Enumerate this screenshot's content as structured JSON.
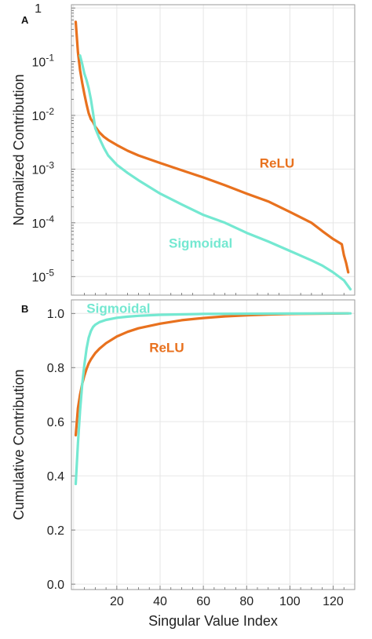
{
  "chart_data": [
    {
      "panel": "A",
      "type": "line",
      "ylabel": "Normalized Contribution",
      "xlabel": "",
      "yscale": "log",
      "ylim": [
        4.5e-06,
        1.15
      ],
      "xlim": [
        -1,
        130
      ],
      "yticks": [
        {
          "value": 1,
          "base": "1",
          "exp": ""
        },
        {
          "value": 0.1,
          "base": "10",
          "exp": "-1"
        },
        {
          "value": 0.01,
          "base": "10",
          "exp": "-2"
        },
        {
          "value": 0.001,
          "base": "10",
          "exp": "-3"
        },
        {
          "value": 0.0001,
          "base": "10",
          "exp": "-4"
        },
        {
          "value": 1e-05,
          "base": "10",
          "exp": "-5"
        }
      ],
      "xgrid": [
        0,
        20,
        40,
        60,
        80,
        100,
        120
      ],
      "grid": true,
      "series": [
        {
          "name": "ReLU",
          "color": "#e8711e",
          "label_at": [
            86,
            0.0013
          ],
          "x": [
            1,
            2,
            3,
            4,
            5,
            6,
            7,
            8,
            9,
            10,
            12,
            14,
            16,
            20,
            25,
            30,
            40,
            50,
            60,
            70,
            80,
            90,
            100,
            110,
            115,
            120,
            124,
            125,
            126,
            127
          ],
          "y": [
            0.55,
            0.15,
            0.07,
            0.04,
            0.025,
            0.016,
            0.011,
            0.0085,
            0.0075,
            0.0062,
            0.0048,
            0.004,
            0.0035,
            0.0028,
            0.0022,
            0.0018,
            0.0013,
            0.00095,
            0.0007,
            0.0005,
            0.00035,
            0.00025,
            0.00016,
            0.0001,
            7e-05,
            5e-05,
            4e-05,
            2.5e-05,
            1.8e-05,
            1.2e-05
          ]
        },
        {
          "name": "Sigmoidal",
          "color": "#74e8d1",
          "label_at": [
            44,
            4.2e-05
          ],
          "x": [
            3,
            4,
            5,
            6,
            7,
            8,
            9,
            10,
            12,
            14,
            16,
            20,
            25,
            30,
            40,
            50,
            60,
            70,
            80,
            90,
            100,
            110,
            115,
            120,
            125,
            128
          ],
          "y": [
            0.13,
            0.09,
            0.06,
            0.045,
            0.032,
            0.02,
            0.011,
            0.0058,
            0.0037,
            0.0025,
            0.0018,
            0.0012,
            0.00085,
            0.00062,
            0.00035,
            0.00022,
            0.00014,
            0.0001,
            6.5e-05,
            4.5e-05,
            3e-05,
            2e-05,
            1.6e-05,
            1.2e-05,
            8.5e-06,
            5.8e-06
          ]
        }
      ]
    },
    {
      "panel": "B",
      "type": "line",
      "ylabel": "Cumulative Contribution",
      "xlabel": "Singular Value Index",
      "yscale": "linear",
      "ylim": [
        -0.02,
        1.05
      ],
      "xlim": [
        -1,
        130
      ],
      "yticks": [
        0.0,
        0.2,
        0.4,
        0.6,
        0.8,
        1.0
      ],
      "ytick_labels": [
        "0.0",
        "0.2",
        "0.4",
        "0.6",
        "0.8",
        "1.0"
      ],
      "xticks": [
        20,
        40,
        60,
        80,
        100,
        120
      ],
      "xtick_labels": [
        "20",
        "40",
        "60",
        "80",
        "100",
        "120"
      ],
      "xgrid": [
        0,
        20,
        40,
        60,
        80,
        100,
        120
      ],
      "grid": true,
      "series": [
        {
          "name": "ReLU",
          "color": "#e8711e",
          "label_at": [
            35,
            0.875
          ],
          "x": [
            1,
            2,
            3,
            4,
            5,
            6,
            7,
            8,
            9,
            10,
            12,
            15,
            20,
            25,
            30,
            40,
            50,
            60,
            70,
            80,
            90,
            100,
            110,
            120,
            127
          ],
          "y": [
            0.55,
            0.65,
            0.7,
            0.74,
            0.77,
            0.795,
            0.815,
            0.83,
            0.842,
            0.853,
            0.87,
            0.89,
            0.915,
            0.932,
            0.945,
            0.962,
            0.975,
            0.983,
            0.989,
            0.993,
            0.996,
            0.998,
            0.999,
            0.9995,
            1.0
          ]
        },
        {
          "name": "Sigmoidal",
          "color": "#74e8d1",
          "label_at": [
            6,
            1.02
          ],
          "x": [
            1,
            2,
            3,
            4,
            5,
            6,
            7,
            8,
            9,
            10,
            12,
            15,
            20,
            25,
            30,
            40,
            60,
            80,
            100,
            120,
            128
          ],
          "y": [
            0.37,
            0.52,
            0.64,
            0.74,
            0.81,
            0.87,
            0.91,
            0.935,
            0.95,
            0.958,
            0.968,
            0.976,
            0.984,
            0.988,
            0.991,
            0.995,
            0.998,
            0.999,
            0.9995,
            1.0,
            1.0
          ]
        }
      ]
    }
  ]
}
